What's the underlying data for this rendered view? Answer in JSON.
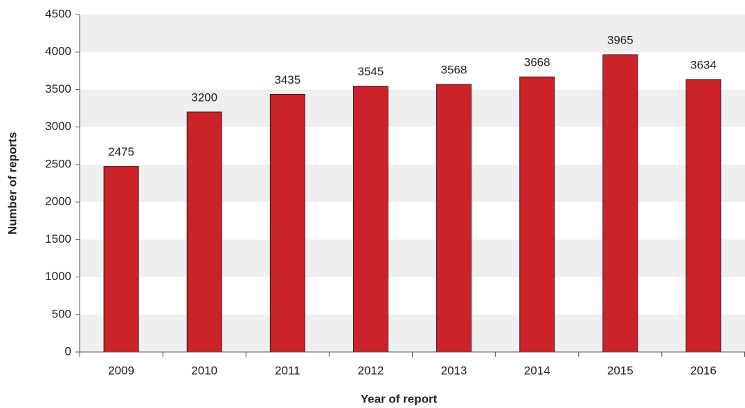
{
  "chart_data": {
    "type": "bar",
    "x_label": "Year of report",
    "y_label": "Number of reports",
    "categories": [
      "2009",
      "2010",
      "2011",
      "2012",
      "2013",
      "2014",
      "2015",
      "2016"
    ],
    "values": [
      2475,
      3200,
      3435,
      3545,
      3568,
      3668,
      3965,
      3634
    ],
    "color": "#cc2229",
    "ylim": [
      0,
      4500
    ],
    "yticks": [
      0,
      500,
      1000,
      1500,
      2000,
      2500,
      3000,
      3500,
      4000,
      4500
    ],
    "grid": true
  }
}
